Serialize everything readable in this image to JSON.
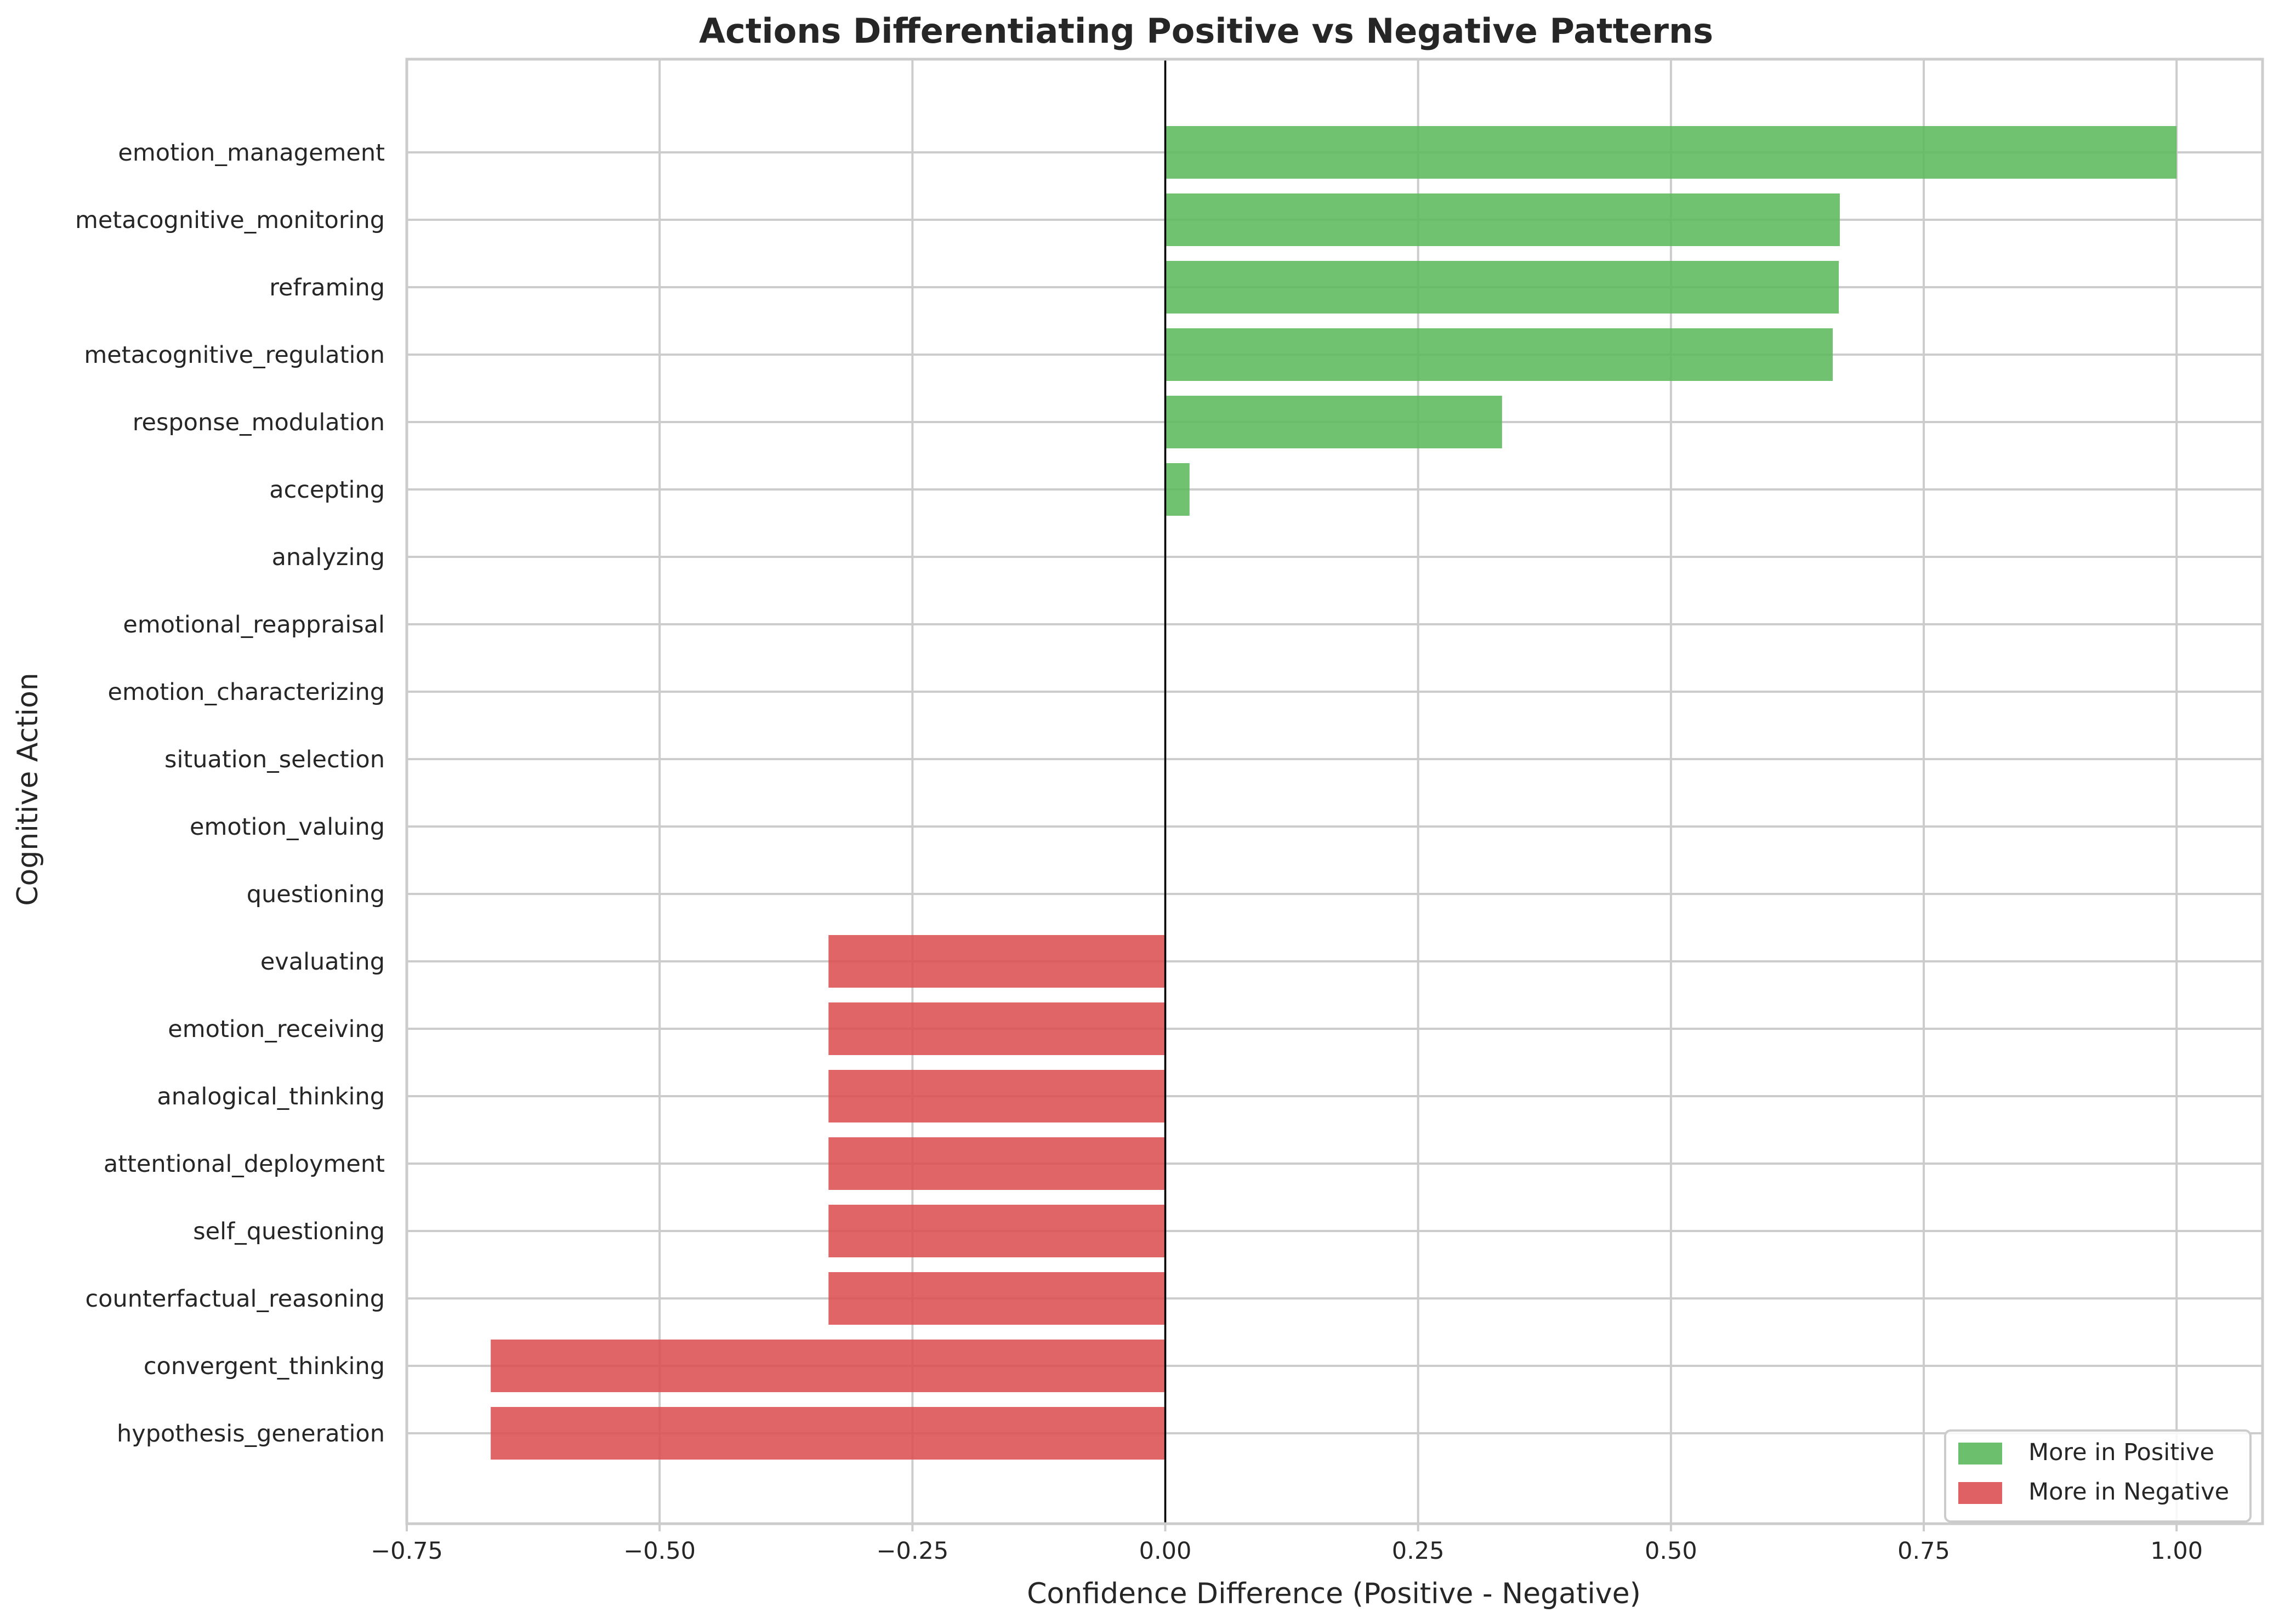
{
  "chart_data": {
    "type": "bar",
    "orientation": "horizontal",
    "title": "Actions Differentiating Positive vs Negative Patterns",
    "xlabel": "Confidence Difference (Positive - Negative)",
    "ylabel": "Cognitive Action",
    "xlim": [
      -0.75,
      1.085
    ],
    "xticks": [
      "−0.75",
      "−0.50",
      "−0.25",
      "0.00",
      "0.25",
      "0.50",
      "0.75",
      "1.00"
    ],
    "grid": true,
    "legend_position": "lower-right",
    "categories": [
      "emotion_management",
      "metacognitive_monitoring",
      "reframing",
      "metacognitive_regulation",
      "response_modulation",
      "accepting",
      "analyzing",
      "emotional_reappraisal",
      "emotion_characterizing",
      "situation_selection",
      "emotion_valuing",
      "questioning",
      "evaluating",
      "emotion_receiving",
      "analogical_thinking",
      "attentional_deployment",
      "self_questioning",
      "counterfactual_reasoning",
      "convergent_thinking",
      "hypothesis_generation"
    ],
    "values": [
      1.0,
      0.667,
      0.666,
      0.66,
      0.333,
      0.024,
      0,
      0,
      0,
      0,
      0,
      0,
      -0.333,
      -0.333,
      -0.333,
      -0.333,
      -0.333,
      -0.333,
      -0.667,
      -0.667
    ],
    "legend": [
      {
        "label": "More in Positive",
        "color": "#5cb85c"
      },
      {
        "label": "More in Negative",
        "color": "#dc5052"
      }
    ],
    "colors": {
      "positive": "#5cb85c",
      "negative": "#dc5052",
      "zero_line": "#000000"
    }
  }
}
